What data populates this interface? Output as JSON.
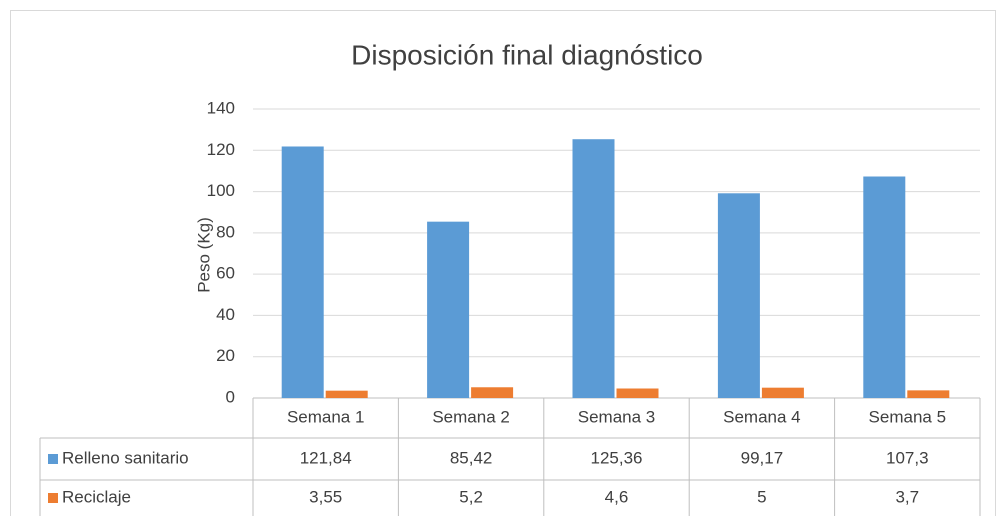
{
  "chart_data": {
    "type": "bar",
    "title": "Disposición final diagnóstico",
    "y_label": "Peso (Kg)",
    "categories": [
      "Semana 1",
      "Semana 2",
      "Semana 3",
      "Semana 4",
      "Semana 5"
    ],
    "series": [
      {
        "name": "Relleno sanitario",
        "color": "#5b9bd5",
        "values": [
          121.84,
          85.42,
          125.36,
          99.17,
          107.3
        ],
        "value_labels": [
          "121,84",
          "85,42",
          "125,36",
          "99,17",
          "107,3"
        ]
      },
      {
        "name": "Reciclaje",
        "color": "#ed7d31",
        "values": [
          3.55,
          5.2,
          4.6,
          5,
          3.7
        ],
        "value_labels": [
          "3,55",
          "5,2",
          "4,6",
          "5",
          "3,7"
        ]
      }
    ],
    "ylim": [
      0,
      140
    ],
    "yticks": [
      0,
      20,
      40,
      60,
      80,
      100,
      120,
      140
    ],
    "grid": true
  }
}
